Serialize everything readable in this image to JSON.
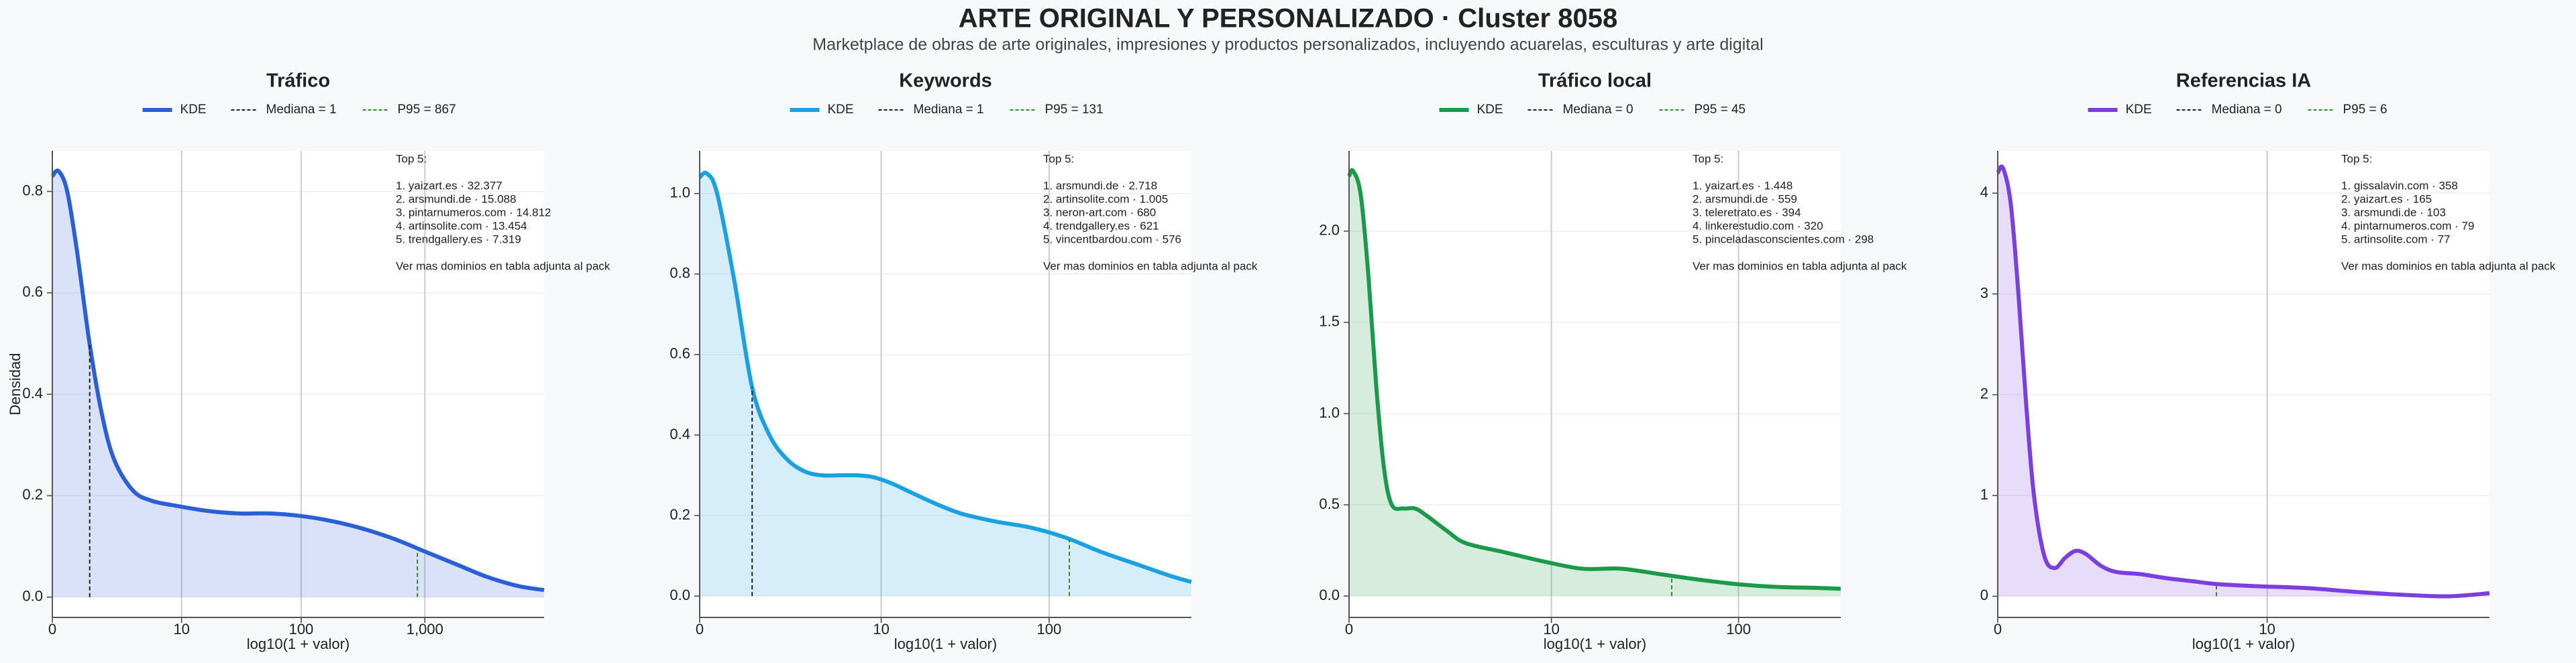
{
  "title": "ARTE ORIGINAL Y PERSONALIZADO · Cluster 8058",
  "subtitle": "Marketplace de obras de arte originales, impresiones y productos personalizados, incluyendo acuarelas, esculturas y arte digital",
  "chart_data": [
    {
      "type": "line",
      "title": "Tráfico",
      "xlabel": "log10(1 + valor)",
      "ylabel": "Densidad",
      "grid": true,
      "xlim": [
        0,
        3.96
      ],
      "ylim": [
        -0.04,
        0.88
      ],
      "xticks": [
        0,
        {
          "value": 1.041,
          "label": "10"
        },
        {
          "value": 2.004,
          "label": "100"
        },
        {
          "value": 3,
          "label": "1,000"
        }
      ],
      "yticks": [
        {
          "value": 0,
          "label": "0.0"
        },
        0.2,
        0.4,
        0.6,
        0.8
      ],
      "x": [
        0,
        0.05,
        0.12,
        0.2,
        0.3,
        0.4,
        0.5,
        0.65,
        0.8,
        1.0,
        1.25,
        1.5,
        1.75,
        2.0,
        2.25,
        2.5,
        2.75,
        3.0,
        3.25,
        3.5,
        3.75,
        3.96
      ],
      "series": [
        {
          "name": "KDE",
          "color": "#2a5fd8",
          "values": [
            0.83,
            0.84,
            0.8,
            0.68,
            0.5,
            0.36,
            0.27,
            0.21,
            0.19,
            0.18,
            0.17,
            0.165,
            0.165,
            0.16,
            0.15,
            0.135,
            0.115,
            0.09,
            0.065,
            0.04,
            0.022,
            0.014
          ]
        }
      ],
      "reference_lines": [
        {
          "name": "Mediana = 1",
          "x": 0.301,
          "color": "#222222"
        },
        {
          "name": "P95 = 867",
          "x": 2.94,
          "color": "#2d8a2d"
        }
      ],
      "annotation_title": "Top 5:",
      "annotation_lines": [
        "1. yaizart.es · 32.377",
        "2. arsmundi.de · 15.088",
        "3. pintarnumeros.com · 14.812",
        "4. artinsolite.com · 13.454",
        "5. trendgallery.es · 7.319"
      ],
      "annotation_note": "Ver mas dominios en tabla adjunta al pack"
    },
    {
      "type": "line",
      "title": "Keywords",
      "xlabel": "log10(1 + valor)",
      "grid": true,
      "xlim": [
        0,
        2.82
      ],
      "ylim": [
        -0.053,
        1.106
      ],
      "xticks": [
        0,
        {
          "value": 1.041,
          "label": "10"
        },
        {
          "value": 2.004,
          "label": "100"
        }
      ],
      "yticks": [
        {
          "value": 0,
          "label": "0.0"
        },
        0.2,
        0.4,
        0.6,
        0.8,
        {
          "value": 1,
          "label": "1.0"
        }
      ],
      "x": [
        0,
        0.04,
        0.1,
        0.2,
        0.3,
        0.4,
        0.5,
        0.6,
        0.7,
        0.8,
        0.9,
        1.0,
        1.1,
        1.2,
        1.35,
        1.5,
        1.7,
        1.9,
        2.1,
        2.3,
        2.5,
        2.7,
        2.82
      ],
      "series": [
        {
          "name": "KDE",
          "color": "#1ba1e2",
          "values": [
            1.04,
            1.05,
            1.0,
            0.78,
            0.52,
            0.4,
            0.34,
            0.31,
            0.3,
            0.3,
            0.3,
            0.295,
            0.28,
            0.26,
            0.23,
            0.205,
            0.185,
            0.17,
            0.145,
            0.11,
            0.08,
            0.05,
            0.035
          ]
        }
      ],
      "reference_lines": [
        {
          "name": "Mediana = 1",
          "x": 0.301,
          "color": "#222222"
        },
        {
          "name": "P95 = 131",
          "x": 2.12,
          "color": "#2d8a2d"
        }
      ],
      "annotation_title": "Top 5:",
      "annotation_lines": [
        "1. arsmundi.de · 2.718",
        "2. artinsolite.com · 1.005",
        "3. neron-art.com · 680",
        "4. trendgallery.es · 621",
        "5. vincentbardou.com · 576"
      ],
      "annotation_note": "Ver mas dominios en tabla adjunta al pack"
    },
    {
      "type": "line",
      "title": "Tráfico local",
      "xlabel": "log10(1 + valor)",
      "grid": true,
      "xlim": [
        0,
        2.53
      ],
      "ylim": [
        -0.117,
        2.44
      ],
      "xticks": [
        0,
        {
          "value": 1.041,
          "label": "10"
        },
        {
          "value": 2.004,
          "label": "100"
        }
      ],
      "yticks": [
        {
          "value": 0,
          "label": "0.0"
        },
        0.5,
        {
          "value": 1,
          "label": "1.0"
        },
        1.5,
        {
          "value": 2,
          "label": "2.0"
        }
      ],
      "x": [
        0,
        0.02,
        0.06,
        0.1,
        0.14,
        0.18,
        0.22,
        0.28,
        0.34,
        0.4,
        0.5,
        0.6,
        0.8,
        1.0,
        1.2,
        1.4,
        1.6,
        1.8,
        2.0,
        2.2,
        2.4,
        2.53
      ],
      "series": [
        {
          "name": "KDE",
          "color": "#1a9a4a",
          "values": [
            2.3,
            2.33,
            2.2,
            1.75,
            1.15,
            0.7,
            0.5,
            0.48,
            0.48,
            0.44,
            0.36,
            0.29,
            0.24,
            0.19,
            0.15,
            0.15,
            0.12,
            0.09,
            0.065,
            0.05,
            0.045,
            0.04
          ]
        }
      ],
      "reference_lines": [
        {
          "name": "Mediana = 0",
          "x": 0,
          "color": "#222222"
        },
        {
          "name": "P95 = 45",
          "x": 1.66,
          "color": "#2d8a2d"
        }
      ],
      "annotation_title": "Top 5:",
      "annotation_lines": [
        "1. yaizart.es · 1.448",
        "2. arsmundi.de · 559",
        "3. teleretrato.es · 394",
        "4. linkerestudio.com · 320",
        "5. pinceladasconscientes.com · 298"
      ],
      "annotation_note": "Ver mas dominios en tabla adjunta al pack"
    },
    {
      "type": "line",
      "title": "Referencias IA",
      "xlabel": "log10(1 + valor)",
      "grid": true,
      "xlim": [
        0,
        1.9
      ],
      "ylim": [
        -0.21,
        4.42
      ],
      "xticks": [
        0,
        {
          "value": 1.041,
          "label": "10"
        }
      ],
      "yticks": [
        0,
        1,
        2,
        3,
        4
      ],
      "x": [
        0,
        0.02,
        0.05,
        0.08,
        0.11,
        0.14,
        0.18,
        0.22,
        0.26,
        0.3,
        0.34,
        0.4,
        0.46,
        0.55,
        0.65,
        0.75,
        0.85,
        1.0,
        1.2,
        1.4,
        1.6,
        1.75,
        1.9
      ],
      "series": [
        {
          "name": "KDE",
          "color": "#7b3fe0",
          "values": [
            4.2,
            4.25,
            3.9,
            3.0,
            1.9,
            1.0,
            0.4,
            0.28,
            0.38,
            0.45,
            0.42,
            0.3,
            0.24,
            0.22,
            0.18,
            0.15,
            0.12,
            0.1,
            0.08,
            0.04,
            0.01,
            0.0,
            0.03
          ]
        }
      ],
      "reference_lines": [
        {
          "name": "Mediana = 0",
          "x": 0,
          "color": "#222222"
        },
        {
          "name": "P95 = 6",
          "x": 0.845,
          "color": "#2d8a2d"
        }
      ],
      "annotation_title": "Top 5:",
      "annotation_lines": [
        "1. gissalavin.com · 358",
        "2. yaizart.es · 165",
        "3. arsmundi.de · 103",
        "4. pintarnumeros.com · 79",
        "5. artinsolite.com · 77"
      ],
      "annotation_note": "Ver mas dominios en tabla adjunta al pack"
    }
  ]
}
